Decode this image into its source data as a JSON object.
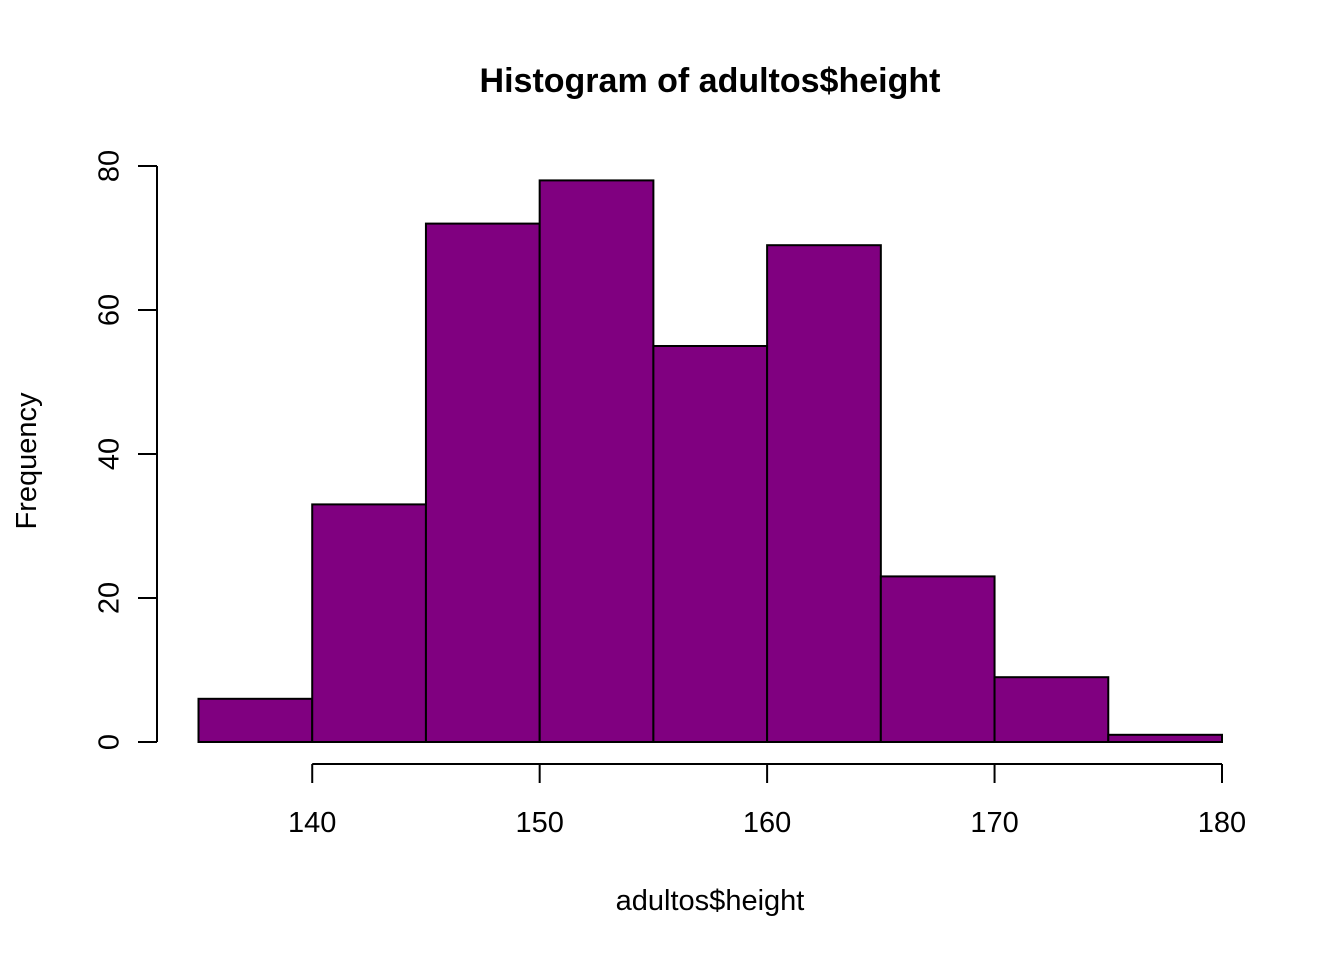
{
  "chart_data": {
    "type": "bar",
    "subtype": "histogram",
    "title": "Histogram of adultos$height",
    "xlabel": "adultos$height",
    "ylabel": "Frequency",
    "bins": [
      {
        "from": 135,
        "to": 140,
        "count": 6
      },
      {
        "from": 140,
        "to": 145,
        "count": 33
      },
      {
        "from": 145,
        "to": 150,
        "count": 72
      },
      {
        "from": 150,
        "to": 155,
        "count": 78
      },
      {
        "from": 155,
        "to": 160,
        "count": 55
      },
      {
        "from": 160,
        "to": 165,
        "count": 69
      },
      {
        "from": 165,
        "to": 170,
        "count": 23
      },
      {
        "from": 170,
        "to": 175,
        "count": 9
      },
      {
        "from": 175,
        "to": 180,
        "count": 1
      }
    ],
    "xlim": [
      135,
      180
    ],
    "ylim": [
      0,
      80
    ],
    "x_ticks": [
      140,
      150,
      160,
      170,
      180
    ],
    "y_ticks": [
      0,
      20,
      40,
      60,
      80
    ],
    "bar_color": "#800080",
    "border_color": "#000000",
    "grid": false,
    "legend": "none"
  }
}
